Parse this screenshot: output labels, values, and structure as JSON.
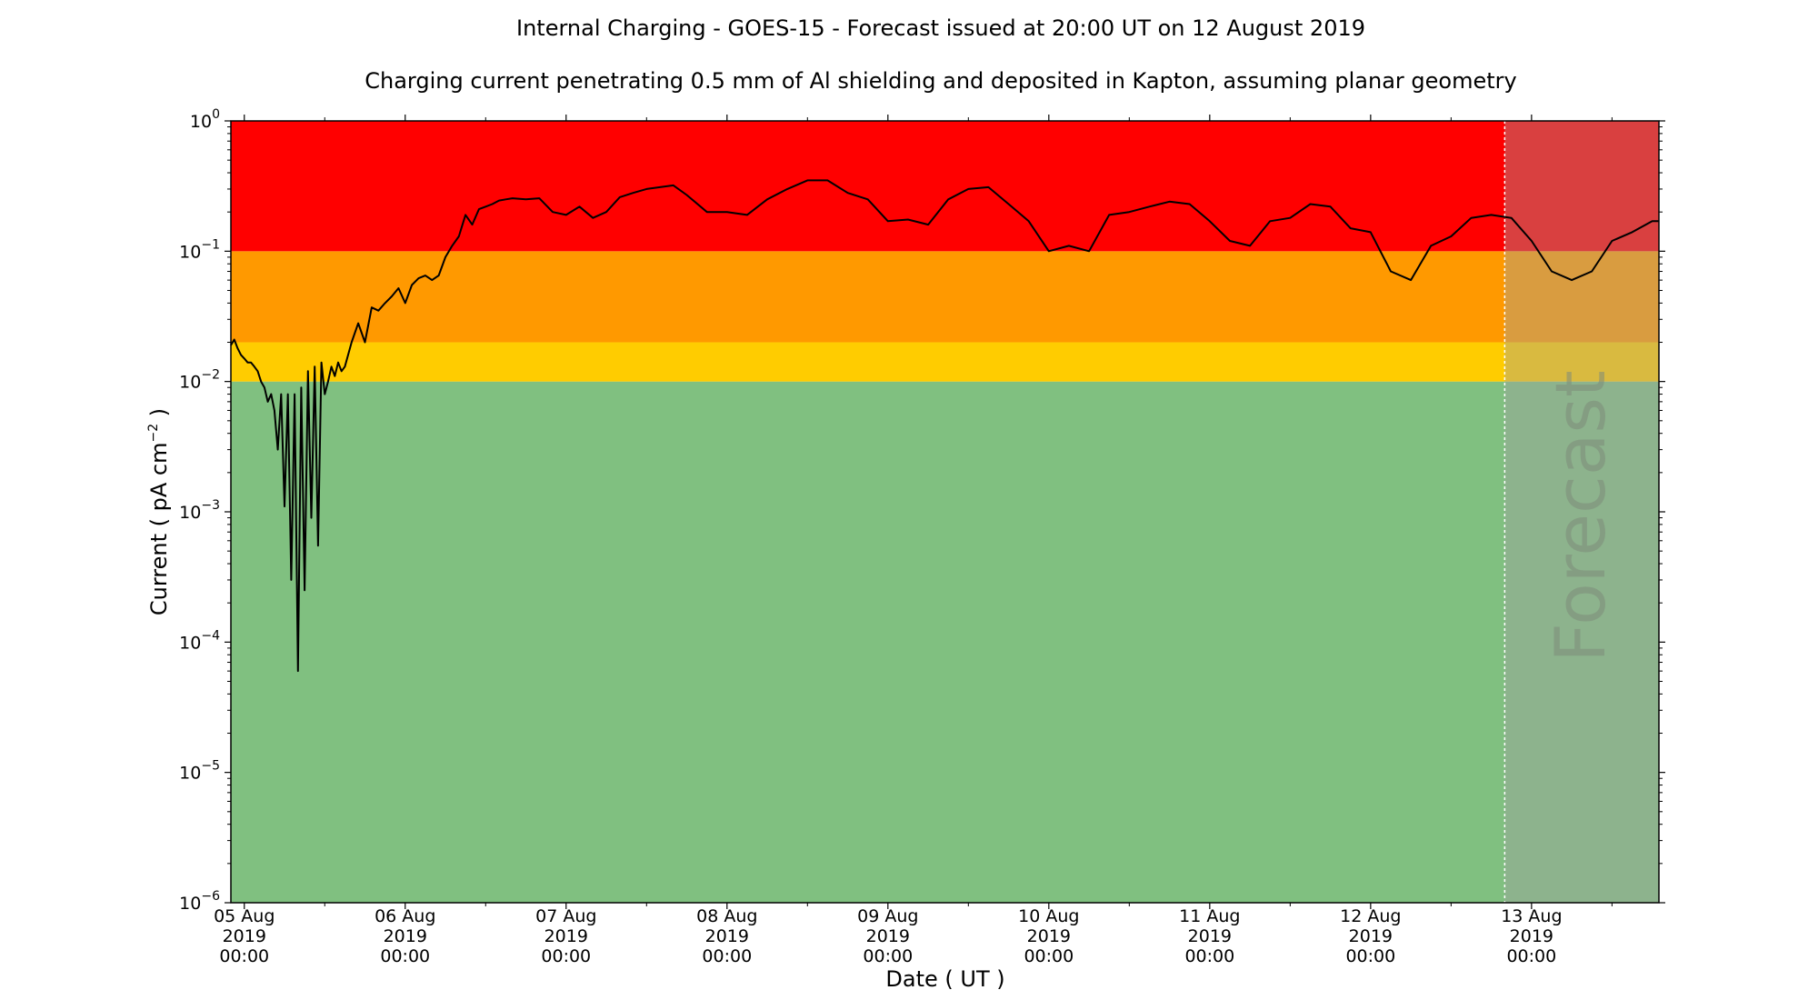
{
  "chart_data": {
    "type": "line",
    "title": "Internal Charging - GOES-15 - Forecast issued at 20:00 UT on 12 August 2019",
    "subtitle": "Charging current penetrating 0.5 mm of Al shielding and deposited in Kapton, assuming planar geometry",
    "xlabel": "Date ( UT )",
    "ylabel": "Current ( pA cm",
    "ylabel_sup": "−2",
    "ylabel_tail": " )",
    "y_scale": "log",
    "ylim_exponent": [
      -6,
      0
    ],
    "y_ticks": [
      {
        "exp": -6,
        "base": "10",
        "sup": "−6"
      },
      {
        "exp": -5,
        "base": "10",
        "sup": "−5"
      },
      {
        "exp": -4,
        "base": "10",
        "sup": "−4"
      },
      {
        "exp": -3,
        "base": "10",
        "sup": "−3"
      },
      {
        "exp": -2,
        "base": "10",
        "sup": "−2"
      },
      {
        "exp": -1,
        "base": "10",
        "sup": "−1"
      },
      {
        "exp": 0,
        "base": "10",
        "sup": "0"
      }
    ],
    "xlim": [
      "2019-08-04 22:00",
      "2019-08-13 19:00"
    ],
    "x_ticks": [
      {
        "date": "2019-08-05 00:00",
        "line1": "05 Aug",
        "line2": "2019",
        "line3": "00:00"
      },
      {
        "date": "2019-08-06 00:00",
        "line1": "06 Aug",
        "line2": "2019",
        "line3": "00:00"
      },
      {
        "date": "2019-08-07 00:00",
        "line1": "07 Aug",
        "line2": "2019",
        "line3": "00:00"
      },
      {
        "date": "2019-08-08 00:00",
        "line1": "08 Aug",
        "line2": "2019",
        "line3": "00:00"
      },
      {
        "date": "2019-08-09 00:00",
        "line1": "09 Aug",
        "line2": "2019",
        "line3": "00:00"
      },
      {
        "date": "2019-08-10 00:00",
        "line1": "10 Aug",
        "line2": "2019",
        "line3": "00:00"
      },
      {
        "date": "2019-08-11 00:00",
        "line1": "11 Aug",
        "line2": "2019",
        "line3": "00:00"
      },
      {
        "date": "2019-08-12 00:00",
        "line1": "12 Aug",
        "line2": "2019",
        "line3": "00:00"
      },
      {
        "date": "2019-08-13 00:00",
        "line1": "13 Aug",
        "line2": "2019",
        "line3": "00:00"
      }
    ],
    "risk_bands": [
      {
        "from": 1e-06,
        "to": 0.01,
        "color": "#80c080"
      },
      {
        "from": 0.01,
        "to": 0.02,
        "color": "#ffcc00"
      },
      {
        "from": 0.02,
        "to": 0.1,
        "color": "#ff9900"
      },
      {
        "from": 0.1,
        "to": 1,
        "color": "#ff0000"
      }
    ],
    "forecast": {
      "start": "2019-08-12 20:00",
      "label": "Forecast",
      "overlay_color": "#a0a0a0"
    },
    "grid": false,
    "legend": "none",
    "series": [
      {
        "color": "#000000",
        "x": [
          "2019-08-04 22:00",
          "2019-08-04 22:30",
          "2019-08-04 23:00",
          "2019-08-04 23:30",
          "2019-08-05 00:00",
          "2019-08-05 00:30",
          "2019-08-05 01:00",
          "2019-08-05 01:30",
          "2019-08-05 02:00",
          "2019-08-05 02:30",
          "2019-08-05 03:00",
          "2019-08-05 03:30",
          "2019-08-05 04:00",
          "2019-08-05 04:30",
          "2019-08-05 05:00",
          "2019-08-05 05:30",
          "2019-08-05 06:00",
          "2019-08-05 06:30",
          "2019-08-05 07:00",
          "2019-08-05 07:30",
          "2019-08-05 08:00",
          "2019-08-05 08:30",
          "2019-08-05 09:00",
          "2019-08-05 09:30",
          "2019-08-05 10:00",
          "2019-08-05 10:30",
          "2019-08-05 11:00",
          "2019-08-05 11:30",
          "2019-08-05 12:00",
          "2019-08-05 12:30",
          "2019-08-05 13:00",
          "2019-08-05 13:30",
          "2019-08-05 14:00",
          "2019-08-05 14:30",
          "2019-08-05 15:00",
          "2019-08-05 16:00",
          "2019-08-05 17:00",
          "2019-08-05 18:00",
          "2019-08-05 19:00",
          "2019-08-05 20:00",
          "2019-08-05 21:00",
          "2019-08-05 22:00",
          "2019-08-05 23:00",
          "2019-08-06 00:00",
          "2019-08-06 01:00",
          "2019-08-06 02:00",
          "2019-08-06 03:00",
          "2019-08-06 04:00",
          "2019-08-06 05:00",
          "2019-08-06 06:00",
          "2019-08-06 07:00",
          "2019-08-06 08:00",
          "2019-08-06 09:00",
          "2019-08-06 10:00",
          "2019-08-06 11:00",
          "2019-08-06 12:00",
          "2019-08-06 13:00",
          "2019-08-06 14:00",
          "2019-08-06 15:00",
          "2019-08-06 16:00",
          "2019-08-06 18:00",
          "2019-08-06 20:00",
          "2019-08-06 22:00",
          "2019-08-07 00:00",
          "2019-08-07 02:00",
          "2019-08-07 04:00",
          "2019-08-07 06:00",
          "2019-08-07 08:00",
          "2019-08-07 10:00",
          "2019-08-07 12:00",
          "2019-08-07 14:00",
          "2019-08-07 16:00",
          "2019-08-07 18:00",
          "2019-08-07 21:00",
          "2019-08-08 00:00",
          "2019-08-08 03:00",
          "2019-08-08 06:00",
          "2019-08-08 09:00",
          "2019-08-08 12:00",
          "2019-08-08 15:00",
          "2019-08-08 18:00",
          "2019-08-08 21:00",
          "2019-08-09 00:00",
          "2019-08-09 03:00",
          "2019-08-09 06:00",
          "2019-08-09 09:00",
          "2019-08-09 12:00",
          "2019-08-09 15:00",
          "2019-08-09 18:00",
          "2019-08-09 21:00",
          "2019-08-10 00:00",
          "2019-08-10 03:00",
          "2019-08-10 06:00",
          "2019-08-10 09:00",
          "2019-08-10 12:00",
          "2019-08-10 15:00",
          "2019-08-10 18:00",
          "2019-08-10 21:00",
          "2019-08-11 00:00",
          "2019-08-11 03:00",
          "2019-08-11 06:00",
          "2019-08-11 09:00",
          "2019-08-11 12:00",
          "2019-08-11 15:00",
          "2019-08-11 18:00",
          "2019-08-11 21:00",
          "2019-08-12 00:00",
          "2019-08-12 03:00",
          "2019-08-12 06:00",
          "2019-08-12 09:00",
          "2019-08-12 12:00",
          "2019-08-12 15:00",
          "2019-08-12 18:00",
          "2019-08-12 21:00",
          "2019-08-13 00:00",
          "2019-08-13 03:00",
          "2019-08-13 06:00",
          "2019-08-13 09:00",
          "2019-08-13 12:00",
          "2019-08-13 15:00",
          "2019-08-13 18:00",
          "2019-08-13 19:00"
        ],
        "y": [
          0.019,
          0.021,
          0.018,
          0.016,
          0.015,
          0.014,
          0.014,
          0.013,
          0.012,
          0.01,
          0.009,
          0.007,
          0.008,
          0.006,
          0.003,
          0.008,
          0.0011,
          0.008,
          0.0003,
          0.008,
          6e-05,
          0.009,
          0.00025,
          0.012,
          0.0009,
          0.013,
          0.00055,
          0.014,
          0.008,
          0.01,
          0.013,
          0.011,
          0.014,
          0.012,
          0.013,
          0.02,
          0.028,
          0.02,
          0.037,
          0.035,
          0.04,
          0.045,
          0.052,
          0.04,
          0.055,
          0.062,
          0.065,
          0.06,
          0.065,
          0.09,
          0.11,
          0.13,
          0.19,
          0.16,
          0.21,
          0.22,
          0.23,
          0.245,
          0.25,
          0.255,
          0.25,
          0.255,
          0.2,
          0.19,
          0.22,
          0.18,
          0.2,
          0.26,
          0.28,
          0.3,
          0.31,
          0.32,
          0.27,
          0.2,
          0.2,
          0.19,
          0.25,
          0.3,
          0.35,
          0.35,
          0.28,
          0.25,
          0.17,
          0.175,
          0.16,
          0.25,
          0.3,
          0.31,
          0.23,
          0.17,
          0.1,
          0.11,
          0.1,
          0.19,
          0.2,
          0.22,
          0.24,
          0.23,
          0.17,
          0.12,
          0.11,
          0.17,
          0.18,
          0.23,
          0.22,
          0.15,
          0.14,
          0.07,
          0.06,
          0.11,
          0.13,
          0.18,
          0.19,
          0.18,
          0.12,
          0.07,
          0.06,
          0.07,
          0.12,
          0.14,
          0.17,
          0.17
        ]
      }
    ]
  }
}
